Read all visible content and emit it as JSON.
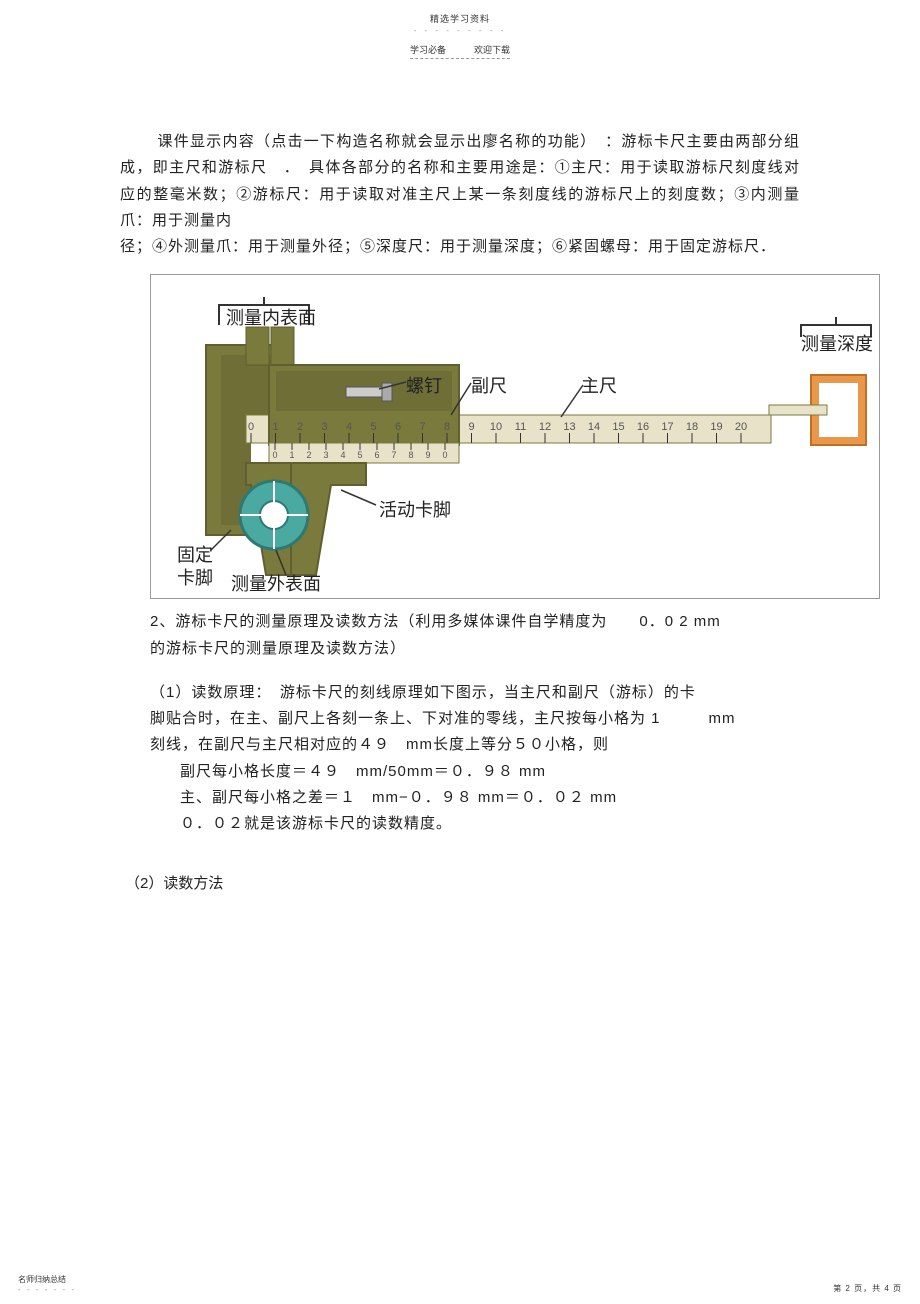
{
  "header": {
    "small_title": "精选学习资料",
    "dash_row": "- - - - - - - - -",
    "sub_left": "学习必备",
    "sub_right": "欢迎下载"
  },
  "body": {
    "p1": "课件显示内容（点击一下构造名称就会显示出廖名称的功能）　：游标卡尺主要由两部分组成，即主尺和游标尺　．　具体各部分的名称和主要用途是：①主尺：用于读取游标尺刻度线对应的整毫米数；②游标尺：用于读取对准主尺上某一条刻度线的游标尺上的刻度数；③内测量爪：用于测量内",
    "p2": "径；④外测量爪：用于测量外径；⑤深度尺：用于测量深度；⑥紧固螺母：用于固定游标尺．"
  },
  "diagram": {
    "main_width": 730,
    "main_height": 325,
    "bg": "#ffffff",
    "colors": {
      "olive": "#7a7a3c",
      "olive_dark": "#5f5f2f",
      "teal": "#4aa9a0",
      "beige": "#e8e3c8",
      "gray": "#888888",
      "line": "#333333",
      "orange": "#e9974a",
      "orange_dark": "#c07020"
    },
    "labels": {
      "inner_surface": "测量内表面",
      "depth": "测量深度",
      "screw": "螺钉",
      "vernier": "副尺",
      "main_scale": "主尺",
      "movable_jaw": "活动卡脚",
      "fixed_jaw_l1": "固定",
      "fixed_jaw_l2": "卡脚",
      "outer_surface": "测量外表面",
      "arrow_stroke": "#333333"
    },
    "main_scale_numbers": [
      "0",
      "1",
      "2",
      "3",
      "4",
      "5",
      "6",
      "7",
      "8",
      "9",
      "10",
      "11",
      "12",
      "13",
      "14",
      "15",
      "16",
      "17",
      "18",
      "19",
      "20"
    ],
    "vernier_numbers": [
      "0",
      "1",
      "2",
      "3",
      "4",
      "5",
      "6",
      "7",
      "8",
      "9",
      "0"
    ]
  },
  "section2": {
    "l1a": "2、游标卡尺的测量原理及读数方法（利用多媒体课件自学精度为",
    "l1b": "0．0 2 mm",
    "l2": "的游标卡尺的测量原理及读数方法）",
    "l3": "（1）读数原理：　游标卡尺的刻线原理如下图示，当主尺和副尺（游标）的卡",
    "l4a": "脚贴合时，在主、副尺上各刻一条上、下对准的零线，主尺按每小格为 1",
    "l4b": "mm",
    "l5": "刻线，在副尺与主尺相对应的４９　mm长度上等分５０小格，则",
    "l6": "副尺每小格长度＝４９　mm/50mm＝０．９８ mm",
    "l7": "主、副尺每小格之差＝１　mm−０．９８ mm＝０．０２ mm",
    "l8": "０．０２就是该游标卡尺的读数精度。",
    "l9": "（2）读数方法"
  },
  "footer": {
    "left_text": "名师归纳总结",
    "left_dots": "- - - - - - -",
    "right_text": "第 2 页，共 4 页"
  }
}
